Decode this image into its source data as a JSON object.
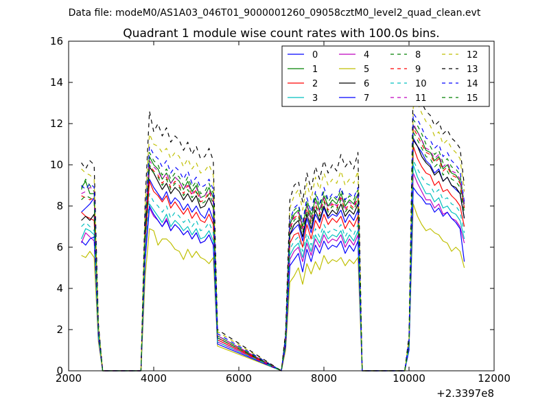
{
  "figure": {
    "suptitle": "Data file: modeM0/AS1A03_046T01_9000001260_09058cztM0_level2_quad_clean.evt"
  },
  "chart_data": {
    "type": "line",
    "title": "Quadrant 1 module wise count rates with 100.0s bins.",
    "xlabel": "",
    "ylabel": "",
    "x_offset_label": "+2.3397e8",
    "xlim": [
      2000,
      12000
    ],
    "ylim": [
      0,
      16
    ],
    "xticks": [
      2000,
      4000,
      6000,
      8000,
      10000,
      12000
    ],
    "yticks": [
      0,
      2,
      4,
      6,
      8,
      10,
      12,
      14,
      16
    ],
    "xtick_labels": [
      "2000",
      "4000",
      "6000",
      "8000",
      "10000",
      "12000"
    ],
    "ytick_labels": [
      "0",
      "2",
      "4",
      "6",
      "8",
      "10",
      "12",
      "14",
      "16"
    ],
    "grid": false,
    "legend_position": "top-right",
    "x": [
      2300,
      2400,
      2500,
      2600,
      2700,
      2800,
      3700,
      3800,
      3900,
      4000,
      4100,
      4200,
      4300,
      4400,
      4500,
      4600,
      4700,
      4800,
      4900,
      5000,
      5100,
      5200,
      5300,
      5400,
      5500,
      7000,
      7100,
      7200,
      7300,
      7400,
      7500,
      7600,
      7700,
      7800,
      7900,
      8000,
      8100,
      8200,
      8300,
      8400,
      8500,
      8600,
      8700,
      8800,
      8900,
      9900,
      10000,
      10100,
      10200,
      10300,
      10400,
      10500,
      10600,
      10700,
      10800,
      10900,
      11000,
      11100,
      11200,
      11300
    ],
    "series": [
      {
        "name": "0",
        "color": "#0000ff",
        "dash": "solid",
        "values": [
          7.7,
          7.9,
          8.1,
          8.4,
          2.0,
          0,
          0,
          6.5,
          9.3,
          8.9,
          8.6,
          8.3,
          8.7,
          8.1,
          8.4,
          8.2,
          7.8,
          8.1,
          7.7,
          8.0,
          7.6,
          7.4,
          7.9,
          7.3,
          1.5,
          0,
          1.5,
          6.6,
          6.9,
          7.1,
          6.3,
          7.4,
          6.7,
          7.6,
          7.2,
          7.9,
          7.4,
          7.6,
          7.5,
          7.8,
          7.2,
          7.6,
          7.3,
          7.8,
          0,
          0,
          1.3,
          11.3,
          10.9,
          10.6,
          10.2,
          10.0,
          9.6,
          9.8,
          9.2,
          9.4,
          9.0,
          8.8,
          8.6,
          7.4
        ]
      },
      {
        "name": "1",
        "color": "#008000",
        "dash": "solid",
        "values": [
          8.9,
          9.2,
          8.6,
          8.6,
          2.0,
          0,
          0,
          6.9,
          10.4,
          10.0,
          9.8,
          9.3,
          9.6,
          9.1,
          9.4,
          9.2,
          8.8,
          9.2,
          8.7,
          9.0,
          8.4,
          8.5,
          8.9,
          8.4,
          1.7,
          0,
          1.6,
          7.1,
          7.6,
          7.8,
          7.0,
          8.1,
          7.4,
          8.4,
          7.8,
          8.5,
          8.0,
          8.3,
          8.1,
          8.6,
          8.0,
          8.3,
          8.1,
          8.6,
          0,
          0,
          1.4,
          11.9,
          11.6,
          11.2,
          10.7,
          10.6,
          10.2,
          10.4,
          9.8,
          10.0,
          9.6,
          9.5,
          9.2,
          7.9
        ]
      },
      {
        "name": "2",
        "color": "#ff0000",
        "dash": "solid",
        "values": [
          7.7,
          7.5,
          7.4,
          7.3,
          1.8,
          0,
          0,
          6.3,
          9.2,
          8.7,
          8.5,
          8.2,
          8.5,
          7.9,
          8.2,
          7.9,
          7.6,
          7.9,
          7.4,
          7.7,
          7.3,
          7.2,
          7.6,
          7.1,
          1.5,
          0,
          1.5,
          6.2,
          6.6,
          6.7,
          6.0,
          7.1,
          6.4,
          7.3,
          6.9,
          7.6,
          7.1,
          7.4,
          7.2,
          7.5,
          6.9,
          7.3,
          7.0,
          7.5,
          0,
          0,
          1.2,
          10.9,
          10.3,
          9.9,
          9.6,
          9.5,
          9.0,
          9.2,
          8.7,
          8.8,
          8.5,
          8.3,
          8.0,
          7.0
        ]
      },
      {
        "name": "3",
        "color": "#00bfbf",
        "dash": "solid",
        "values": [
          6.4,
          6.9,
          6.8,
          6.6,
          1.6,
          0,
          0,
          5.8,
          8.1,
          7.8,
          7.5,
          7.2,
          7.6,
          7.0,
          7.3,
          7.1,
          6.8,
          7.0,
          6.6,
          6.9,
          6.4,
          6.5,
          6.8,
          6.3,
          1.4,
          0,
          1.3,
          5.6,
          6.0,
          6.2,
          5.5,
          6.4,
          5.8,
          6.6,
          6.2,
          6.8,
          6.4,
          6.6,
          6.5,
          6.8,
          6.2,
          6.6,
          6.3,
          6.8,
          0,
          0,
          1.1,
          10.0,
          9.4,
          9.0,
          8.6,
          8.6,
          8.2,
          8.4,
          7.9,
          8.0,
          7.7,
          7.6,
          7.3,
          6.4
        ]
      },
      {
        "name": "4",
        "color": "#bf00bf",
        "dash": "solid",
        "values": [
          6.2,
          6.7,
          6.5,
          6.3,
          1.5,
          0,
          0,
          5.6,
          7.9,
          7.5,
          7.3,
          7.0,
          7.4,
          6.8,
          7.1,
          6.9,
          6.6,
          6.8,
          6.4,
          6.7,
          6.2,
          6.3,
          6.6,
          6.1,
          1.4,
          0,
          1.3,
          5.4,
          5.8,
          6.0,
          5.3,
          6.2,
          5.6,
          6.4,
          6.0,
          6.6,
          6.2,
          6.4,
          6.3,
          6.6,
          6.0,
          6.4,
          6.1,
          6.6,
          0,
          0,
          1.1,
          9.6,
          9.1,
          8.7,
          8.3,
          8.3,
          7.9,
          8.1,
          7.6,
          7.7,
          7.4,
          7.3,
          7.0,
          6.2
        ]
      },
      {
        "name": "5",
        "color": "#bfbf00",
        "dash": "solid",
        "values": [
          5.6,
          5.5,
          5.8,
          5.5,
          1.4,
          0,
          0,
          4.6,
          6.9,
          6.8,
          6.1,
          6.4,
          6.4,
          6.2,
          5.9,
          5.8,
          5.4,
          5.9,
          5.5,
          5.8,
          5.5,
          5.4,
          5.2,
          5.5,
          1.2,
          0,
          1.0,
          4.3,
          4.6,
          5.0,
          4.2,
          5.2,
          4.7,
          5.3,
          4.9,
          5.6,
          5.2,
          5.4,
          5.3,
          5.5,
          5.1,
          5.4,
          5.2,
          5.5,
          0,
          0,
          1.0,
          8.1,
          7.5,
          7.1,
          6.8,
          6.9,
          6.7,
          6.6,
          6.3,
          6.2,
          5.8,
          6.0,
          5.8,
          5.0
        ]
      },
      {
        "name": "6",
        "color": "#000000",
        "dash": "solid",
        "values": [
          7.3,
          7.5,
          7.3,
          7.6,
          1.9,
          0,
          0,
          6.6,
          9.9,
          9.6,
          9.2,
          8.8,
          9.1,
          8.6,
          8.9,
          8.7,
          8.3,
          8.6,
          8.2,
          8.5,
          7.9,
          8.0,
          8.4,
          7.9,
          1.6,
          0,
          1.5,
          6.6,
          7.1,
          7.3,
          6.5,
          7.6,
          6.9,
          7.8,
          7.3,
          8.0,
          7.5,
          7.8,
          7.6,
          8.1,
          7.5,
          7.8,
          7.6,
          8.1,
          0,
          0,
          1.3,
          11.2,
          10.9,
          10.4,
          10.1,
          9.9,
          9.5,
          9.7,
          9.2,
          9.4,
          9.0,
          8.9,
          8.6,
          7.4
        ]
      },
      {
        "name": "7",
        "color": "#0000ff",
        "dash": "solid",
        "values": [
          6.3,
          6.1,
          6.4,
          6.5,
          1.6,
          0,
          0,
          5.4,
          8.0,
          7.6,
          7.3,
          7.0,
          7.3,
          6.8,
          7.1,
          6.9,
          6.6,
          6.8,
          6.4,
          6.7,
          6.2,
          6.3,
          6.6,
          6.1,
          1.3,
          0,
          1.2,
          5.1,
          5.4,
          5.7,
          4.8,
          5.9,
          5.3,
          6.1,
          5.7,
          6.3,
          5.9,
          6.1,
          6.0,
          6.3,
          5.7,
          6.1,
          5.8,
          6.3,
          0,
          0,
          1.0,
          8.9,
          8.6,
          8.4,
          8.1,
          8.1,
          7.7,
          7.9,
          7.5,
          7.7,
          7.4,
          7.2,
          6.9,
          5.3
        ]
      },
      {
        "name": "8",
        "color": "#008000",
        "dash": "dashed",
        "values": [
          8.8,
          9.3,
          9.0,
          8.7,
          2.1,
          0,
          0,
          6.9,
          10.6,
          10.2,
          10.0,
          9.5,
          9.8,
          9.3,
          9.6,
          9.4,
          9.0,
          9.4,
          8.9,
          9.2,
          8.6,
          8.7,
          9.1,
          8.6,
          1.7,
          0,
          1.6,
          7.2,
          7.8,
          8.0,
          7.2,
          8.3,
          7.6,
          8.6,
          8.0,
          8.7,
          8.2,
          8.5,
          8.3,
          8.8,
          8.2,
          8.5,
          8.3,
          8.8,
          0,
          0,
          1.4,
          12.2,
          11.9,
          11.5,
          11.0,
          10.9,
          10.5,
          10.7,
          10.1,
          10.3,
          9.9,
          9.8,
          9.5,
          8.1
        ]
      },
      {
        "name": "9",
        "color": "#ff0000",
        "dash": "dashed",
        "values": [
          8.5,
          8.4,
          8.3,
          8.4,
          2.0,
          0,
          0,
          7.0,
          10.0,
          9.7,
          9.5,
          9.1,
          9.4,
          8.9,
          9.2,
          9.0,
          8.6,
          9.0,
          8.5,
          8.8,
          8.2,
          8.3,
          8.7,
          8.2,
          1.6,
          0,
          1.6,
          6.9,
          7.4,
          7.6,
          6.8,
          7.9,
          7.2,
          8.1,
          7.6,
          8.3,
          7.8,
          8.1,
          7.9,
          8.4,
          7.8,
          8.1,
          7.9,
          8.4,
          0,
          0,
          1.3,
          11.8,
          11.4,
          11.0,
          10.6,
          10.5,
          10.1,
          10.3,
          9.7,
          9.9,
          9.5,
          9.4,
          9.1,
          7.9
        ]
      },
      {
        "name": "10",
        "color": "#00bfbf",
        "dash": "dashed",
        "values": [
          7.0,
          7.2,
          7.0,
          6.8,
          1.7,
          0,
          0,
          6.0,
          8.6,
          8.2,
          8.0,
          7.7,
          8.0,
          7.4,
          7.7,
          7.5,
          7.2,
          7.4,
          7.0,
          7.3,
          6.8,
          6.9,
          7.2,
          6.7,
          1.4,
          0,
          1.4,
          5.9,
          6.3,
          6.5,
          5.8,
          6.7,
          6.1,
          6.9,
          6.5,
          7.1,
          6.7,
          6.9,
          6.8,
          7.1,
          6.5,
          6.9,
          6.6,
          7.1,
          0,
          0,
          1.1,
          10.2,
          9.8,
          9.4,
          9.1,
          9.0,
          8.6,
          8.8,
          8.3,
          8.4,
          8.1,
          8.0,
          7.7,
          6.7
        ]
      },
      {
        "name": "11",
        "color": "#bf00bf",
        "dash": "dashed",
        "values": [
          8.6,
          8.7,
          8.9,
          8.8,
          2.1,
          0,
          0,
          7.1,
          10.2,
          9.9,
          9.7,
          9.3,
          9.6,
          9.1,
          9.4,
          9.2,
          8.8,
          9.1,
          8.6,
          8.9,
          8.4,
          8.5,
          8.8,
          8.3,
          1.7,
          0,
          1.6,
          7.0,
          7.5,
          7.7,
          6.9,
          8.0,
          7.3,
          8.2,
          7.7,
          8.4,
          7.9,
          8.2,
          8.0,
          8.5,
          7.9,
          8.2,
          8.0,
          8.5,
          0,
          0,
          1.4,
          12.0,
          11.6,
          11.2,
          10.8,
          10.7,
          10.3,
          10.5,
          9.9,
          10.1,
          9.7,
          9.6,
          9.3,
          8.0
        ]
      },
      {
        "name": "12",
        "color": "#bfbf00",
        "dash": "dashed",
        "values": [
          9.8,
          9.6,
          9.5,
          9.3,
          2.2,
          0,
          0,
          8.0,
          11.5,
          11.0,
          10.9,
          10.6,
          10.8,
          10.3,
          10.6,
          10.4,
          9.9,
          10.3,
          9.8,
          10.1,
          9.6,
          9.7,
          10.0,
          9.5,
          1.9,
          0,
          1.8,
          7.9,
          8.5,
          8.8,
          7.8,
          9.1,
          8.3,
          9.4,
          8.8,
          9.6,
          9.0,
          9.3,
          9.1,
          9.7,
          9.0,
          9.3,
          9.1,
          9.7,
          0,
          0,
          1.6,
          12.8,
          13.0,
          12.5,
          12.1,
          11.9,
          11.4,
          11.6,
          11.0,
          11.2,
          10.8,
          10.6,
          10.3,
          8.7
        ]
      },
      {
        "name": "13",
        "color": "#000000",
        "dash": "dashed",
        "values": [
          10.1,
          9.8,
          10.2,
          10.0,
          2.3,
          0,
          0,
          8.3,
          12.6,
          11.6,
          12.0,
          11.4,
          11.8,
          11.1,
          11.4,
          11.2,
          10.7,
          11.1,
          10.5,
          10.9,
          10.3,
          10.4,
          10.8,
          10.2,
          2.0,
          0,
          1.9,
          8.3,
          9.0,
          9.2,
          8.2,
          9.6,
          8.8,
          9.9,
          9.3,
          10.2,
          9.6,
          10.0,
          9.7,
          10.5,
          9.9,
          10.2,
          9.8,
          10.6,
          0,
          0,
          1.7,
          14.0,
          13.5,
          13.0,
          12.6,
          12.4,
          11.9,
          12.1,
          11.5,
          11.7,
          11.3,
          11.1,
          10.8,
          9.0
        ]
      },
      {
        "name": "14",
        "color": "#0000ff",
        "dash": "dashed",
        "values": [
          9.0,
          8.8,
          9.1,
          8.9,
          2.1,
          0,
          0,
          7.3,
          10.9,
          10.5,
          10.3,
          9.9,
          10.2,
          9.6,
          9.9,
          9.7,
          9.3,
          9.7,
          9.1,
          9.4,
          8.9,
          9.0,
          9.3,
          8.8,
          1.8,
          0,
          1.7,
          7.3,
          7.9,
          8.1,
          7.2,
          8.4,
          7.7,
          8.7,
          8.1,
          8.9,
          8.3,
          8.6,
          8.4,
          8.9,
          8.3,
          8.6,
          8.4,
          8.9,
          0,
          0,
          1.5,
          12.5,
          12.2,
          11.8,
          11.3,
          11.2,
          10.8,
          11.0,
          10.4,
          10.6,
          10.2,
          10.0,
          9.7,
          8.2
        ]
      },
      {
        "name": "15",
        "color": "#008000",
        "dash": "dashed",
        "values": [
          8.3,
          8.5,
          8.4,
          8.2,
          2.0,
          0,
          0,
          7.0,
          10.0,
          9.6,
          9.4,
          9.0,
          9.3,
          8.8,
          9.1,
          8.9,
          8.5,
          8.8,
          8.4,
          8.7,
          8.1,
          8.2,
          8.6,
          8.1,
          1.6,
          0,
          1.5,
          6.8,
          7.3,
          7.5,
          6.7,
          7.8,
          7.1,
          8.0,
          7.5,
          8.2,
          7.7,
          8.0,
          7.8,
          8.3,
          7.7,
          8.0,
          7.8,
          8.3,
          0,
          0,
          1.3,
          11.6,
          11.2,
          10.8,
          10.4,
          10.3,
          9.9,
          10.1,
          9.5,
          9.7,
          9.3,
          9.2,
          8.9,
          7.7
        ]
      }
    ]
  }
}
